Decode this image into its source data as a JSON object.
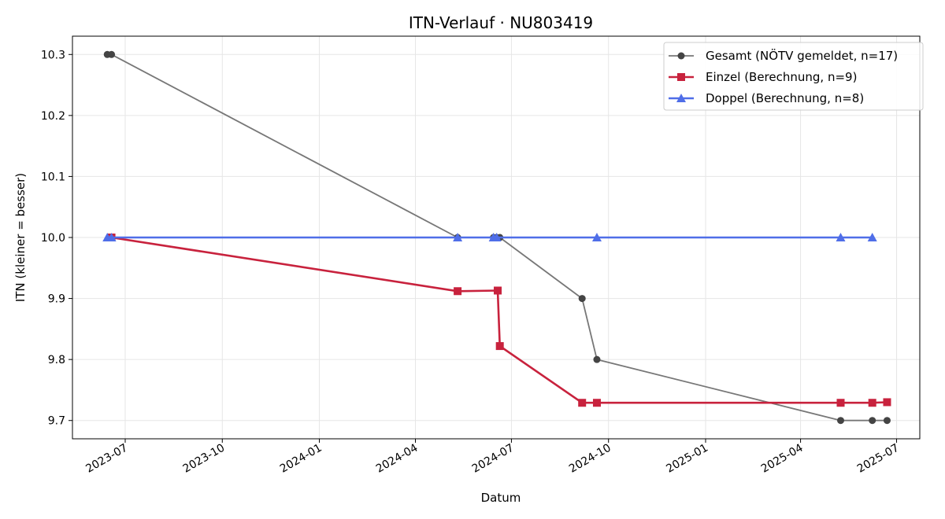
{
  "chart_data": {
    "type": "line",
    "title": "ITN-Verlauf · NU803419",
    "xlabel": "Datum",
    "ylabel": "ITN  (kleiner = besser)",
    "x_axis": "date",
    "xlim": [
      "2023-05-12",
      "2025-07-23"
    ],
    "ylim": [
      9.67,
      10.33
    ],
    "x_ticks": [
      "2023-07",
      "2023-10",
      "2024-01",
      "2024-04",
      "2024-07",
      "2024-10",
      "2025-01",
      "2025-04",
      "2025-07"
    ],
    "y_ticks": [
      "9.7",
      "9.8",
      "9.9",
      "10.0",
      "10.1",
      "10.2",
      "10.3"
    ],
    "grid": true,
    "legend": "top-right",
    "series": [
      {
        "name": "Gesamt (NÖTV gemeldet, n=17)",
        "color": "#777777",
        "point_color": "#444444",
        "marker": "circle",
        "points": [
          {
            "x": "2023-06-14",
            "y": 10.3
          },
          {
            "x": "2023-06-18",
            "y": 10.3
          },
          {
            "x": "2024-05-11",
            "y": 10.0
          },
          {
            "x": "2024-06-14",
            "y": 10.0
          },
          {
            "x": "2024-06-17",
            "y": 10.0
          },
          {
            "x": "2024-06-20",
            "y": 10.0
          },
          {
            "x": "2024-09-06",
            "y": 9.9
          },
          {
            "x": "2024-09-20",
            "y": 9.8
          },
          {
            "x": "2025-05-09",
            "y": 9.7
          },
          {
            "x": "2025-06-08",
            "y": 9.7
          },
          {
            "x": "2025-06-22",
            "y": 9.7
          }
        ]
      },
      {
        "name": "Einzel (Berechnung, n=9)",
        "color": "#c8223d",
        "marker": "square",
        "points": [
          {
            "x": "2023-06-18",
            "y": 10.0
          },
          {
            "x": "2024-05-11",
            "y": 9.912
          },
          {
            "x": "2024-06-18",
            "y": 9.913
          },
          {
            "x": "2024-06-20",
            "y": 9.822
          },
          {
            "x": "2024-09-06",
            "y": 9.729
          },
          {
            "x": "2024-09-20",
            "y": 9.729
          },
          {
            "x": "2025-05-09",
            "y": 9.729
          },
          {
            "x": "2025-06-08",
            "y": 9.729
          },
          {
            "x": "2025-06-22",
            "y": 9.73
          }
        ]
      },
      {
        "name": "Doppel (Berechnung, n=8)",
        "color": "#4f6ee8",
        "marker": "triangle",
        "points": [
          {
            "x": "2023-06-14",
            "y": 10.0
          },
          {
            "x": "2023-06-18",
            "y": 10.0
          },
          {
            "x": "2024-05-11",
            "y": 10.0
          },
          {
            "x": "2024-06-14",
            "y": 10.0
          },
          {
            "x": "2024-06-17",
            "y": 10.0
          },
          {
            "x": "2024-09-20",
            "y": 10.0
          },
          {
            "x": "2025-05-09",
            "y": 10.0
          },
          {
            "x": "2025-06-08",
            "y": 10.0
          }
        ]
      }
    ]
  }
}
